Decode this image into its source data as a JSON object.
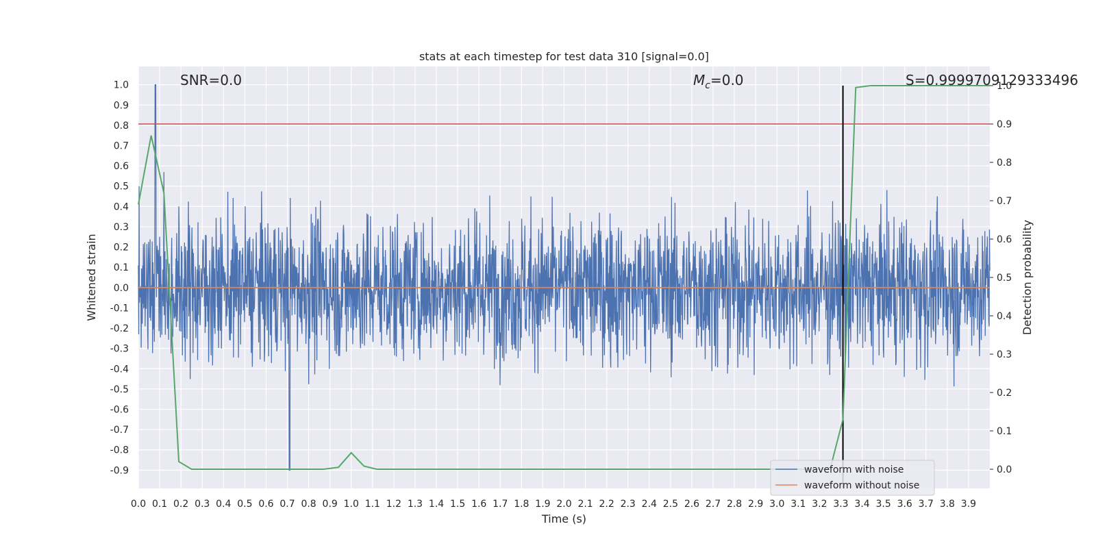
{
  "chart_data": {
    "type": "line",
    "title": "stats at each timestep for test data 310 [signal=0.0]",
    "xlabel": "Time (s)",
    "ylabel": "Whitened strain",
    "y2label": "Detection probability",
    "xlim": [
      0.0,
      4.0
    ],
    "ylim": [
      -0.99,
      1.09
    ],
    "y2lim": [
      -0.05,
      1.05
    ],
    "xticks": [
      "0.0",
      "0.1",
      "0.2",
      "0.3",
      "0.4",
      "0.5",
      "0.6",
      "0.7",
      "0.8",
      "0.9",
      "1.0",
      "1.1",
      "1.2",
      "1.3",
      "1.4",
      "1.5",
      "1.6",
      "1.7",
      "1.8",
      "1.9",
      "2.0",
      "2.1",
      "2.2",
      "2.3",
      "2.4",
      "2.5",
      "2.6",
      "2.7",
      "2.8",
      "2.9",
      "3.0",
      "3.1",
      "3.2",
      "3.3",
      "3.4",
      "3.5",
      "3.6",
      "3.7",
      "3.8",
      "3.9"
    ],
    "yticks": [
      "1.0",
      "0.9",
      "0.8",
      "0.7",
      "0.6",
      "0.5",
      "0.4",
      "0.3",
      "0.2",
      "0.1",
      "0.0",
      "-0.1",
      "-0.2",
      "-0.3",
      "-0.4",
      "-0.5",
      "-0.6",
      "-0.7",
      "-0.8",
      "-0.9"
    ],
    "y2ticks": [
      "1.0",
      "0.9",
      "0.8",
      "0.7",
      "0.6",
      "0.5",
      "0.4",
      "0.3",
      "0.2",
      "0.1",
      "0.0"
    ],
    "grid": true,
    "annotations": {
      "snr": "SNR=0.0",
      "mc_symbol": "M",
      "mc_sub": "c",
      "mc_value": "=0.0",
      "score": "S=0.9999709129333496"
    },
    "series": [
      {
        "name": "waveform with noise",
        "color": "#4c72b0",
        "noise_envelope": {
          "typical_range": [
            -0.45,
            0.45
          ],
          "max_spike": {
            "x": 0.08,
            "y": 1.0
          },
          "min_spike": {
            "x": 0.71,
            "y": -0.9
          }
        }
      },
      {
        "name": "waveform without noise",
        "color": "#dd8452",
        "constant_y": 0.0
      },
      {
        "name": "detection probability",
        "color": "#55a868",
        "axis": "right",
        "x": [
          0.0,
          0.06,
          0.12,
          0.19,
          0.25,
          0.31,
          0.37,
          0.44,
          0.5,
          0.56,
          0.62,
          0.69,
          0.75,
          0.81,
          0.87,
          0.94,
          1.0,
          1.06,
          1.12,
          1.19,
          1.25,
          3.19,
          3.25,
          3.31,
          3.37,
          3.44,
          3.5,
          3.56,
          3.62,
          3.69,
          3.75,
          3.81,
          3.87,
          3.94,
          4.0
        ],
        "y": [
          0.69,
          0.87,
          0.72,
          0.02,
          0.0,
          0.0,
          0.0,
          0.0,
          0.0,
          0.0,
          0.0,
          0.0,
          0.0,
          0.0,
          0.0,
          0.005,
          0.043,
          0.008,
          0.0,
          0.0,
          0.0,
          0.0,
          0.001,
          0.13,
          0.995,
          1.0,
          1.0,
          1.0,
          1.0,
          1.0,
          1.0,
          1.0,
          1.0,
          1.0,
          1.0
        ]
      }
    ],
    "reference_lines": [
      {
        "orientation": "horizontal",
        "axis": "right",
        "y": 0.9,
        "color": "#c44e52"
      },
      {
        "orientation": "vertical",
        "x": 3.31,
        "color": "#000000"
      }
    ],
    "legend": {
      "placement": "lower-right",
      "entries": [
        "waveform with noise",
        "waveform without noise"
      ]
    }
  }
}
